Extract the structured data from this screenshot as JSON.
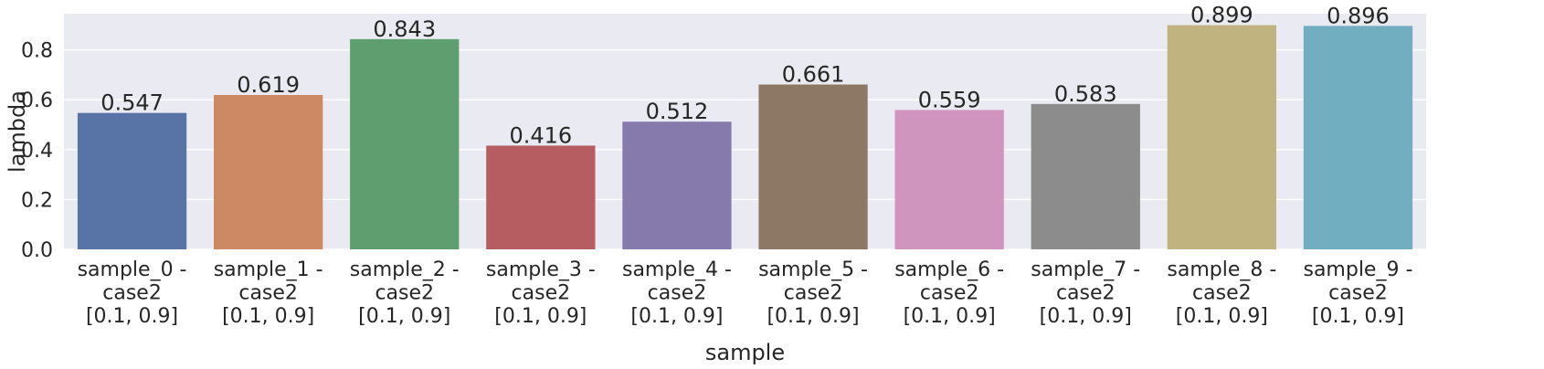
{
  "chart_data": {
    "type": "bar",
    "title": "",
    "xlabel": "sample",
    "ylabel": "lambda",
    "ylim": [
      0,
      0.945
    ],
    "yticks": [
      "0.0",
      "0.2",
      "0.4",
      "0.6",
      "0.8"
    ],
    "ytick_values": [
      0,
      0.2,
      0.4,
      0.6,
      0.8
    ],
    "grid": true,
    "categories": [
      [
        "sample_0 -",
        "case2",
        "[0.1, 0.9]"
      ],
      [
        "sample_1 -",
        "case2",
        "[0.1, 0.9]"
      ],
      [
        "sample_2 -",
        "case2",
        "[0.1, 0.9]"
      ],
      [
        "sample_3 -",
        "case2",
        "[0.1, 0.9]"
      ],
      [
        "sample_4 -",
        "case2",
        "[0.1, 0.9]"
      ],
      [
        "sample_5 -",
        "case2",
        "[0.1, 0.9]"
      ],
      [
        "sample_6 -",
        "case2",
        "[0.1, 0.9]"
      ],
      [
        "sample_7 -",
        "case2",
        "[0.1, 0.9]"
      ],
      [
        "sample_8 -",
        "case2",
        "[0.1, 0.9]"
      ],
      [
        "sample_9 -",
        "case2",
        "[0.1, 0.9]"
      ]
    ],
    "values": [
      0.547,
      0.619,
      0.843,
      0.416,
      0.512,
      0.661,
      0.559,
      0.583,
      0.899,
      0.896
    ],
    "value_labels": [
      "0.547",
      "0.619",
      "0.843",
      "0.416",
      "0.512",
      "0.661",
      "0.559",
      "0.583",
      "0.899",
      "0.896"
    ],
    "colors": [
      "#5874a6",
      "#cc8963",
      "#5f9e6e",
      "#b55d60",
      "#857aab",
      "#8d7866",
      "#d095bf",
      "#8c8c8c",
      "#c1b37f",
      "#71aec0"
    ],
    "style": {
      "background": "#eaeaf2",
      "grid_color": "#ffffff"
    }
  }
}
